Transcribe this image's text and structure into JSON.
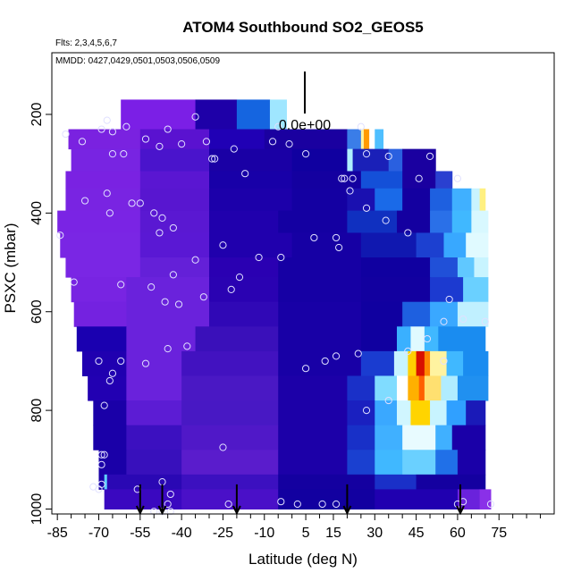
{
  "chart_data": {
    "type": "heatmap",
    "title": "ATOM4 Southbound SO2_GEOS5",
    "flights_note": "Flts: 2,3,4,5,6,7",
    "dates_note": "MMDD: 0427,0429,0501,0503,0506,0509",
    "scale_label": "0.0e+00",
    "xlabel": "Latitude (deg N)",
    "ylabel": "PSXC (mbar)",
    "xlim": [
      -87,
      95
    ],
    "ylim": [
      1010,
      75
    ],
    "x_ticks": [
      -85,
      -70,
      -55,
      -40,
      -25,
      -10,
      5,
      15,
      30,
      45,
      60,
      75
    ],
    "x_minor_ticks": [
      -80,
      -75,
      -65,
      -60,
      -50,
      -45,
      -35,
      -30,
      -20,
      -15,
      -5,
      0,
      10,
      20,
      25,
      35,
      40,
      50,
      55,
      65,
      70,
      80,
      85,
      90
    ],
    "y_ticks": [
      200,
      400,
      600,
      800,
      1000
    ],
    "arrow_latitudes": [
      -55,
      -47,
      -20,
      20,
      61
    ],
    "bands": [
      {
        "p_top": 170,
        "p_bot": 230,
        "segments": [
          [
            -62,
            -35,
            "#7b1fe6"
          ],
          [
            -35,
            -20,
            "#1e00a8"
          ],
          [
            -20,
            -8,
            "#1565e0"
          ],
          [
            -8,
            -2,
            "#9fe6ff"
          ]
        ]
      },
      {
        "p_top": 230,
        "p_bot": 270,
        "segments": [
          [
            -81,
            -55,
            "#7a22e0"
          ],
          [
            -55,
            -30,
            "#5a12d0"
          ],
          [
            -30,
            -10,
            "#2000b5"
          ],
          [
            -10,
            20,
            "#1a00a0"
          ],
          [
            20,
            25,
            "#3a7de8"
          ],
          [
            25,
            26,
            "#fff3a0"
          ],
          [
            26,
            28,
            "#ff9a00"
          ],
          [
            28,
            30,
            "#ffffff"
          ],
          [
            30,
            33,
            "#4fbfff"
          ]
        ]
      },
      {
        "p_top": 270,
        "p_bot": 315,
        "segments": [
          [
            -80,
            -55,
            "#7824e2"
          ],
          [
            -55,
            -30,
            "#4a14cc"
          ],
          [
            -30,
            0,
            "#1a00a5"
          ],
          [
            0,
            20,
            "#1000a0"
          ],
          [
            20,
            22,
            "#aef0ff"
          ],
          [
            22,
            35,
            "#1a20b8"
          ],
          [
            35,
            40,
            "#2a60e0"
          ],
          [
            40,
            52,
            "#1a00a0"
          ]
        ]
      },
      {
        "p_top": 315,
        "p_bot": 350,
        "segments": [
          [
            -82,
            -55,
            "#7a22e2"
          ],
          [
            -55,
            -30,
            "#5a16d2"
          ],
          [
            -30,
            0,
            "#1800a8"
          ],
          [
            0,
            25,
            "#1400a0"
          ],
          [
            25,
            40,
            "#1450d8"
          ],
          [
            40,
            52,
            "#1a00a0"
          ],
          [
            52,
            58,
            "#2a40d0"
          ]
        ]
      },
      {
        "p_top": 350,
        "p_bot": 395,
        "segments": [
          [
            -82,
            -55,
            "#7924e2"
          ],
          [
            -55,
            -30,
            "#5816d0"
          ],
          [
            -30,
            0,
            "#1c00aa"
          ],
          [
            0,
            20,
            "#1400a2"
          ],
          [
            20,
            30,
            "#1a10b0"
          ],
          [
            30,
            40,
            "#1a6ae8"
          ],
          [
            40,
            50,
            "#1400a0"
          ],
          [
            50,
            58,
            "#1e60e0"
          ],
          [
            58,
            65,
            "#40b0ff"
          ],
          [
            65,
            68,
            "#c8f4ff"
          ],
          [
            68,
            70,
            "#fff080"
          ]
        ]
      },
      {
        "p_top": 395,
        "p_bot": 440,
        "segments": [
          [
            -85,
            -55,
            "#7a24e4"
          ],
          [
            -55,
            -30,
            "#5a18d2"
          ],
          [
            -30,
            -5,
            "#2000ad"
          ],
          [
            -5,
            20,
            "#1400a2"
          ],
          [
            20,
            38,
            "#1030c0"
          ],
          [
            38,
            50,
            "#1400a0"
          ],
          [
            50,
            58,
            "#2a70e8"
          ],
          [
            58,
            65,
            "#40b8ff"
          ],
          [
            65,
            71,
            "#d8f8ff"
          ]
        ]
      },
      {
        "p_top": 440,
        "p_bot": 490,
        "segments": [
          [
            -84,
            -55,
            "#7a26e4"
          ],
          [
            -55,
            -30,
            "#5a18d4"
          ],
          [
            -30,
            0,
            "#2000ad"
          ],
          [
            0,
            25,
            "#1600a4"
          ],
          [
            25,
            45,
            "#1018b0"
          ],
          [
            45,
            55,
            "#1c40d0"
          ],
          [
            55,
            63,
            "#38a8ff"
          ],
          [
            63,
            71,
            "#e0faff"
          ]
        ]
      },
      {
        "p_top": 490,
        "p_bot": 530,
        "segments": [
          [
            -82,
            -55,
            "#7a26e4"
          ],
          [
            -55,
            -30,
            "#6420d8"
          ],
          [
            -30,
            -5,
            "#2a00b2"
          ],
          [
            -5,
            25,
            "#1600a4"
          ],
          [
            25,
            50,
            "#1000a0"
          ],
          [
            50,
            60,
            "#2050d8"
          ],
          [
            60,
            66,
            "#60c8ff"
          ],
          [
            66,
            71,
            "#c8f4ff"
          ]
        ]
      },
      {
        "p_top": 530,
        "p_bot": 580,
        "segments": [
          [
            -80,
            -60,
            "#7824e2"
          ],
          [
            -60,
            -30,
            "#6a22dc"
          ],
          [
            -30,
            -5,
            "#2a02b2"
          ],
          [
            -5,
            25,
            "#1600a4"
          ],
          [
            25,
            50,
            "#1200a0"
          ],
          [
            50,
            62,
            "#1c3ad0"
          ],
          [
            62,
            71,
            "#6ad0ff"
          ]
        ]
      },
      {
        "p_top": 580,
        "p_bot": 630,
        "segments": [
          [
            -79,
            -60,
            "#7422e0"
          ],
          [
            -60,
            -30,
            "#6a22dc"
          ],
          [
            -30,
            -5,
            "#3008b6"
          ],
          [
            -5,
            25,
            "#1800a6"
          ],
          [
            25,
            40,
            "#1000a0"
          ],
          [
            40,
            50,
            "#1e60e0"
          ],
          [
            50,
            60,
            "#3aa8ff"
          ],
          [
            60,
            71,
            "#c0f0ff"
          ]
        ]
      },
      {
        "p_top": 630,
        "p_bot": 680,
        "segments": [
          [
            -78,
            -60,
            "#1a00b0"
          ],
          [
            -60,
            -35,
            "#6a22dc"
          ],
          [
            -35,
            -5,
            "#3a10ba"
          ],
          [
            -5,
            25,
            "#1800a6"
          ],
          [
            25,
            38,
            "#1000a0"
          ],
          [
            38,
            43,
            "#3ab0ff"
          ],
          [
            43,
            48,
            "#e0faff"
          ],
          [
            48,
            53,
            "#40b8ff"
          ],
          [
            53,
            70,
            "#1a8cf0"
          ]
        ]
      },
      {
        "p_top": 680,
        "p_bot": 730,
        "segments": [
          [
            -76,
            -60,
            "#2000b0"
          ],
          [
            -60,
            -40,
            "#6a22dc"
          ],
          [
            -40,
            -5,
            "#4212c0"
          ],
          [
            -5,
            25,
            "#1800a6"
          ],
          [
            25,
            37,
            "#1a3cd0"
          ],
          [
            37,
            42,
            "#c8f4ff"
          ],
          [
            42,
            45,
            "#ffd000"
          ],
          [
            45,
            48,
            "#d81000"
          ],
          [
            48,
            50,
            "#ff8800"
          ],
          [
            50,
            56,
            "#fff3a0"
          ],
          [
            56,
            62,
            "#40b8ff"
          ],
          [
            62,
            71,
            "#1a8cf0"
          ]
        ]
      },
      {
        "p_top": 730,
        "p_bot": 780,
        "segments": [
          [
            -74,
            -60,
            "#2200b2"
          ],
          [
            -60,
            -40,
            "#6a22dc"
          ],
          [
            -40,
            -5,
            "#4a18c4"
          ],
          [
            -5,
            20,
            "#1c00a8"
          ],
          [
            20,
            30,
            "#1a30c8"
          ],
          [
            30,
            38,
            "#80dcff"
          ],
          [
            38,
            42,
            "#ffffff"
          ],
          [
            42,
            46,
            "#ffb000"
          ],
          [
            46,
            48,
            "#ff6000"
          ],
          [
            48,
            54,
            "#ffe070"
          ],
          [
            54,
            60,
            "#b0ecff"
          ],
          [
            60,
            71,
            "#2090f0"
          ]
        ]
      },
      {
        "p_top": 780,
        "p_bot": 830,
        "segments": [
          [
            -72,
            -60,
            "#1a00a8"
          ],
          [
            -60,
            -40,
            "#5c1cd4"
          ],
          [
            -40,
            -5,
            "#4818c4"
          ],
          [
            -5,
            20,
            "#1c00a8"
          ],
          [
            20,
            30,
            "#1a20c0"
          ],
          [
            30,
            38,
            "#3aa8ff"
          ],
          [
            38,
            43,
            "#d0f6ff"
          ],
          [
            43,
            50,
            "#ffd400"
          ],
          [
            50,
            56,
            "#c8f4ff"
          ],
          [
            56,
            63,
            "#30a0ff"
          ],
          [
            63,
            70,
            "#1a1ab8"
          ]
        ]
      },
      {
        "p_top": 830,
        "p_bot": 880,
        "segments": [
          [
            -72,
            -60,
            "#1a00a8"
          ],
          [
            -60,
            -40,
            "#3c10c0"
          ],
          [
            -40,
            -5,
            "#5018c8"
          ],
          [
            -5,
            20,
            "#1c00a8"
          ],
          [
            20,
            30,
            "#1830c8"
          ],
          [
            30,
            40,
            "#40b0ff"
          ],
          [
            40,
            52,
            "#e8fbff"
          ],
          [
            52,
            58,
            "#40b0ff"
          ],
          [
            58,
            70,
            "#1a00a8"
          ]
        ]
      },
      {
        "p_top": 880,
        "p_bot": 930,
        "segments": [
          [
            -70,
            -60,
            "#1a00a8"
          ],
          [
            -60,
            -40,
            "#3810bc"
          ],
          [
            -40,
            -5,
            "#5a1ccc"
          ],
          [
            -5,
            20,
            "#1c00a8"
          ],
          [
            20,
            30,
            "#1a40d0"
          ],
          [
            30,
            40,
            "#40b8ff"
          ],
          [
            40,
            52,
            "#6ad0ff"
          ],
          [
            52,
            60,
            "#2070e8"
          ],
          [
            60,
            70,
            "#1a00a8"
          ]
        ]
      },
      {
        "p_top": 930,
        "p_bot": 960,
        "segments": [
          [
            -70,
            -68,
            "#1a00a8"
          ],
          [
            -68,
            -67,
            "#60d0ff"
          ],
          [
            -67,
            -40,
            "#2a08b4"
          ],
          [
            -40,
            -5,
            "#3c10c0"
          ],
          [
            -5,
            30,
            "#1400a0"
          ],
          [
            30,
            45,
            "#1a30c8"
          ],
          [
            45,
            70,
            "#1400a0"
          ]
        ]
      },
      {
        "p_top": 960,
        "p_bot": 1000,
        "segments": [
          [
            -68,
            -40,
            "#3a08c0"
          ],
          [
            -40,
            -5,
            "#4a10c8"
          ],
          [
            -5,
            30,
            "#1200a0"
          ],
          [
            30,
            60,
            "#2000b0"
          ],
          [
            60,
            68,
            "#6a22dc"
          ],
          [
            68,
            72,
            "#8a30e8"
          ]
        ]
      }
    ],
    "obs_points": [
      [
        -35,
        205
      ],
      [
        -45,
        230
      ],
      [
        -60,
        225
      ],
      [
        -67,
        212
      ],
      [
        -69,
        230
      ],
      [
        -65,
        235
      ],
      [
        -82,
        240
      ],
      [
        -76,
        255
      ],
      [
        -53,
        250
      ],
      [
        -48,
        265
      ],
      [
        -40,
        260
      ],
      [
        -65,
        280
      ],
      [
        -61,
        280
      ],
      [
        -28,
        290
      ],
      [
        -17,
        320
      ],
      [
        -21,
        270
      ],
      [
        -31,
        255
      ],
      [
        -7,
        255
      ],
      [
        5,
        280
      ],
      [
        -5,
        225
      ],
      [
        -1,
        260
      ],
      [
        25,
        225
      ],
      [
        27,
        280
      ],
      [
        35,
        285
      ],
      [
        50,
        285
      ],
      [
        46,
        330
      ],
      [
        60,
        330
      ],
      [
        19,
        330
      ],
      [
        22,
        330
      ],
      [
        18,
        330
      ],
      [
        27,
        390
      ],
      [
        21,
        355
      ],
      [
        34,
        415
      ],
      [
        8,
        450
      ],
      [
        -12,
        490
      ],
      [
        42,
        440
      ],
      [
        16,
        450
      ],
      [
        17,
        470
      ],
      [
        -43,
        525
      ],
      [
        -41,
        585
      ],
      [
        -32,
        570
      ],
      [
        -22,
        555
      ],
      [
        -19,
        530
      ],
      [
        -4,
        490
      ],
      [
        -29,
        290
      ],
      [
        -84,
        445
      ],
      [
        -75,
        375
      ],
      [
        -58,
        380
      ],
      [
        -67,
        360
      ],
      [
        -66,
        400
      ],
      [
        -55,
        380
      ],
      [
        -47,
        410
      ],
      [
        -50,
        400
      ],
      [
        -43,
        430
      ],
      [
        -25,
        465
      ],
      [
        -35,
        495
      ],
      [
        -48,
        440
      ],
      [
        -62,
        545
      ],
      [
        -79,
        540
      ],
      [
        -51,
        550
      ],
      [
        -46,
        580
      ],
      [
        -45,
        675
      ],
      [
        -38,
        670
      ],
      [
        -53,
        705
      ],
      [
        -62,
        700
      ],
      [
        -65,
        725
      ],
      [
        -66,
        740
      ],
      [
        -68,
        790
      ],
      [
        -70,
        700
      ],
      [
        -68,
        890
      ],
      [
        -69,
        890
      ],
      [
        -69,
        910
      ],
      [
        -69,
        950
      ],
      [
        -70,
        960
      ],
      [
        -72,
        955
      ],
      [
        -47,
        945
      ],
      [
        -44,
        970
      ],
      [
        -45,
        990
      ],
      [
        -23,
        990
      ],
      [
        -25,
        875
      ],
      [
        -4,
        985
      ],
      [
        2,
        990
      ],
      [
        11,
        990
      ],
      [
        16,
        990
      ],
      [
        -56,
        960
      ],
      [
        -50,
        1005
      ],
      [
        -47,
        1005
      ],
      [
        -44,
        1005
      ],
      [
        5,
        715
      ],
      [
        12,
        700
      ],
      [
        16,
        690
      ],
      [
        24,
        685
      ],
      [
        27,
        800
      ],
      [
        35,
        780
      ],
      [
        42,
        680
      ],
      [
        49,
        655
      ],
      [
        55,
        620
      ],
      [
        57,
        575
      ],
      [
        62,
        615
      ],
      [
        70,
        620
      ],
      [
        62,
        985
      ],
      [
        72,
        990
      ],
      [
        60,
        990
      ],
      [
        55,
        700
      ]
    ]
  }
}
